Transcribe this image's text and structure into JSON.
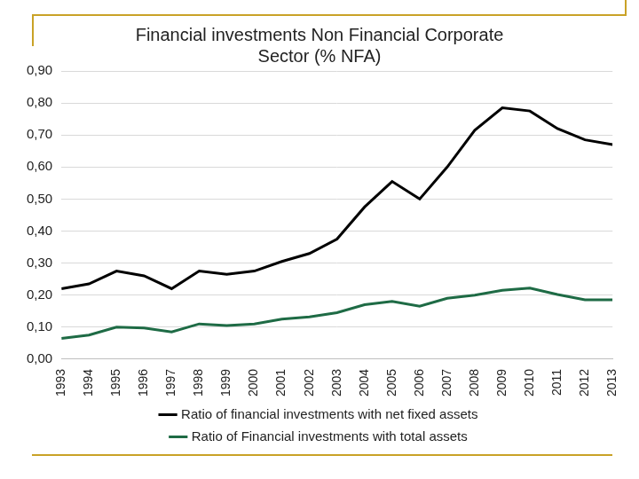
{
  "chart_data": {
    "type": "line",
    "title": [
      "Financial investments Non Financial Corporate",
      "Sector (% NFA)"
    ],
    "categories": [
      "1993",
      "1994",
      "1995",
      "1996",
      "1997",
      "1998",
      "1999",
      "2000",
      "2001",
      "2002",
      "2003",
      "2004",
      "2005",
      "2006",
      "2007",
      "2008",
      "2009",
      "2010",
      "2011",
      "2012",
      "2013"
    ],
    "series": [
      {
        "name": "Ratio of financial investments with net fixed assets",
        "color": "#000000",
        "values": [
          0.22,
          0.235,
          0.275,
          0.26,
          0.22,
          0.275,
          0.265,
          0.275,
          0.305,
          0.33,
          0.375,
          0.475,
          0.555,
          0.5,
          0.6,
          0.715,
          0.785,
          0.775,
          0.72,
          0.685,
          0.67
        ]
      },
      {
        "name": "Ratio of Financial investments with total assets",
        "color": "#1e6b45",
        "values": [
          0.065,
          0.075,
          0.1,
          0.097,
          0.085,
          0.11,
          0.105,
          0.11,
          0.125,
          0.132,
          0.145,
          0.17,
          0.18,
          0.165,
          0.19,
          0.2,
          0.215,
          0.222,
          0.202,
          0.185,
          0.185
        ]
      }
    ],
    "ylim": [
      0,
      0.9
    ],
    "yticks": [
      {
        "value": 0,
        "label": "0,00"
      },
      {
        "value": 0.1,
        "label": "0,10"
      },
      {
        "value": 0.2,
        "label": "0,20"
      },
      {
        "value": 0.3,
        "label": "0,30"
      },
      {
        "value": 0.4,
        "label": "0,40"
      },
      {
        "value": 0.5,
        "label": "0,50"
      },
      {
        "value": 0.6,
        "label": "0,60"
      },
      {
        "value": 0.7,
        "label": "0,70"
      },
      {
        "value": 0.8,
        "label": "0,80"
      },
      {
        "value": 0.9,
        "label": "0,90"
      }
    ],
    "grid": true,
    "legend": "bottom"
  }
}
